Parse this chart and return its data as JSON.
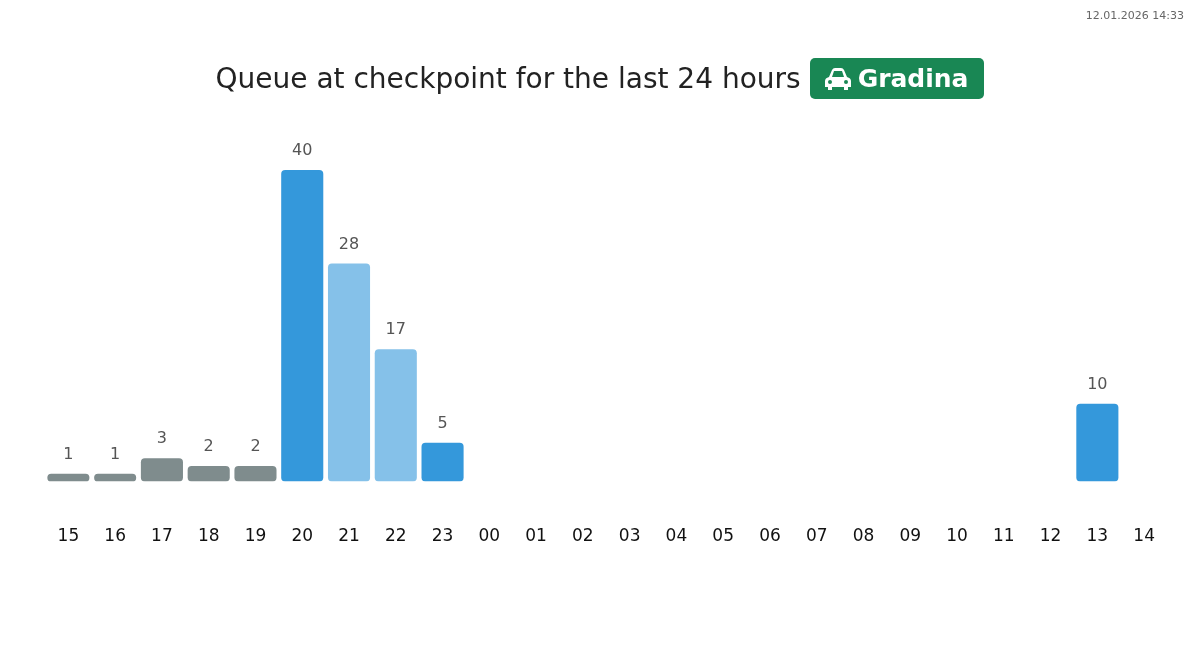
{
  "chart_data": {
    "type": "bar",
    "title": "Queue at checkpoint for the last 24 hours",
    "subtitle": "Gradina",
    "categories": [
      "15",
      "16",
      "17",
      "18",
      "19",
      "20",
      "21",
      "22",
      "23",
      "00",
      "01",
      "02",
      "03",
      "04",
      "05",
      "06",
      "07",
      "08",
      "09",
      "10",
      "11",
      "12",
      "13",
      "14"
    ],
    "values": [
      1,
      1,
      3,
      2,
      2,
      40,
      28,
      17,
      5,
      null,
      null,
      null,
      null,
      null,
      null,
      null,
      null,
      null,
      null,
      null,
      null,
      null,
      10,
      null
    ],
    "colors": [
      "#7f8c8d",
      "#7f8c8d",
      "#7f8c8d",
      "#7f8c8d",
      "#7f8c8d",
      "#3498db",
      "#85c1e9",
      "#85c1e9",
      "#3498db",
      "#3498db",
      "#3498db",
      "#3498db",
      "#3498db",
      "#3498db",
      "#3498db",
      "#3498db",
      "#3498db",
      "#3498db",
      "#3498db",
      "#3498db",
      "#3498db",
      "#3498db",
      "#3498db",
      "#3498db"
    ],
    "data_labels": true,
    "grid": false,
    "legend": false,
    "annotations": [
      "12.01.2026 14:33"
    ]
  }
}
